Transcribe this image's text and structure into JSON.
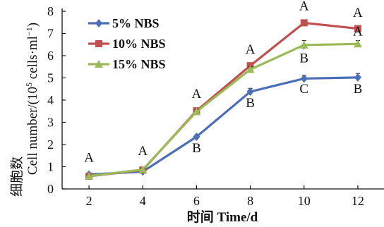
{
  "chart_data": {
    "type": "line",
    "xlabel": "时间 Time/d",
    "ylabel_cn": "细胞数",
    "ylabel_en": "Cell number/(10",
    "ylabel_sup1": "5",
    "ylabel_mid": " cells·ml",
    "ylabel_sup2": "−1",
    "ylabel_end": ")",
    "x": [
      2,
      4,
      6,
      8,
      10,
      12
    ],
    "x_ticks": [
      "2",
      "4",
      "6",
      "8",
      "10",
      "12"
    ],
    "y_ticks": [
      "0",
      "1",
      "2",
      "3",
      "4",
      "5",
      "6",
      "7",
      "8"
    ],
    "xlim": [
      1,
      13
    ],
    "ylim": [
      0,
      8
    ],
    "grid": false,
    "legend_position": "top-left",
    "series": [
      {
        "name": "5% NBS",
        "color": "#4a6fb8",
        "marker": "diamond",
        "values": [
          0.65,
          0.78,
          2.35,
          4.38,
          4.97,
          5.02
        ],
        "errors": [
          0.05,
          0.06,
          0.08,
          0.15,
          0.15,
          0.18
        ]
      },
      {
        "name": "10% NBS",
        "color": "#c0504d",
        "marker": "square",
        "values": [
          0.57,
          0.85,
          3.52,
          5.55,
          7.48,
          7.22
        ],
        "errors": [
          0.05,
          0.06,
          0.1,
          0.1,
          0.08,
          0.06
        ]
      },
      {
        "name": "15% NBS",
        "color": "#9bbb59",
        "marker": "triangle",
        "values": [
          0.58,
          0.87,
          3.48,
          5.38,
          6.48,
          6.53
        ],
        "errors": [
          0.05,
          0.06,
          0.1,
          0.12,
          0.2,
          0.15
        ]
      }
    ],
    "annotations": [
      {
        "x": 2,
        "text": "A",
        "pos": "above",
        "y": 1.22
      },
      {
        "x": 4,
        "text": "A",
        "pos": "above",
        "y": 1.52
      },
      {
        "x": 6,
        "text": "A",
        "pos": "above",
        "y": 4.1
      },
      {
        "x": 6,
        "text": "B",
        "pos": "below",
        "y": 1.65
      },
      {
        "x": 8,
        "text": "A",
        "pos": "above",
        "y": 6.1
      },
      {
        "x": 8,
        "text": "B",
        "pos": "below",
        "y": 3.68
      },
      {
        "x": 10,
        "text": "A",
        "pos": "above",
        "y": 8.05
      },
      {
        "x": 10,
        "text": "B",
        "pos": "above",
        "y": 5.7
      },
      {
        "x": 10,
        "text": "C",
        "pos": "below",
        "y": 4.32
      },
      {
        "x": 12,
        "text": "A",
        "pos": "above",
        "y": 7.75
      },
      {
        "x": 12,
        "text": "A",
        "pos": "above",
        "y": 6.9
      },
      {
        "x": 12,
        "text": "B",
        "pos": "below",
        "y": 4.32
      }
    ]
  }
}
